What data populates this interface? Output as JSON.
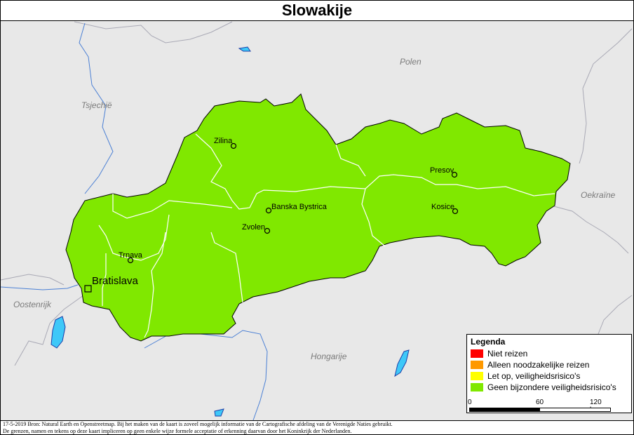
{
  "map": {
    "title": "Slowakije",
    "countries": {
      "poland": "Polen",
      "czech": "Tsjechië",
      "ukraine": "Oekraïne",
      "austria": "Oostenrijk",
      "hungary": "Hongarije"
    },
    "cities": {
      "zilina": "Zilina",
      "presov": "Presov",
      "banska_bystrica": "Banska Bystrica",
      "kosice": "Kosice",
      "zvolen": "Zvolen",
      "trnava": "Trnava",
      "bratislava": "Bratislava"
    },
    "colors": {
      "slovakia": "#80e800",
      "background": "#e8e8e8",
      "water": "#3ec8f8"
    }
  },
  "legend": {
    "title": "Legenda",
    "items": [
      {
        "label": "Niet reizen",
        "color": "#ff0000"
      },
      {
        "label": "Alleen noodzakelijke reizen",
        "color": "#ff9900"
      },
      {
        "label": "Let op, veiligheidsrisico's",
        "color": "#ffff00"
      },
      {
        "label": "Geen bijzondere veiligheidsrisico's",
        "color": "#80e800"
      }
    ]
  },
  "scalebar": {
    "tick_0": "0",
    "tick_60": "60",
    "tick_120": "120 km"
  },
  "footer": {
    "line1": "17-5-2019 Bron: Natural Earth en Openstreetmap. Bij het maken van de kaart is zoveel mogelijk informatie van de Cartografische afdeling van de Verenigde Naties gebruikt.",
    "line2": "De grenzen, namen en tekens op deze kaart impliceren op geen enkele wijze formele acceptatie of erkenning daarvan door het Koninkrijk der Nederlanden."
  }
}
